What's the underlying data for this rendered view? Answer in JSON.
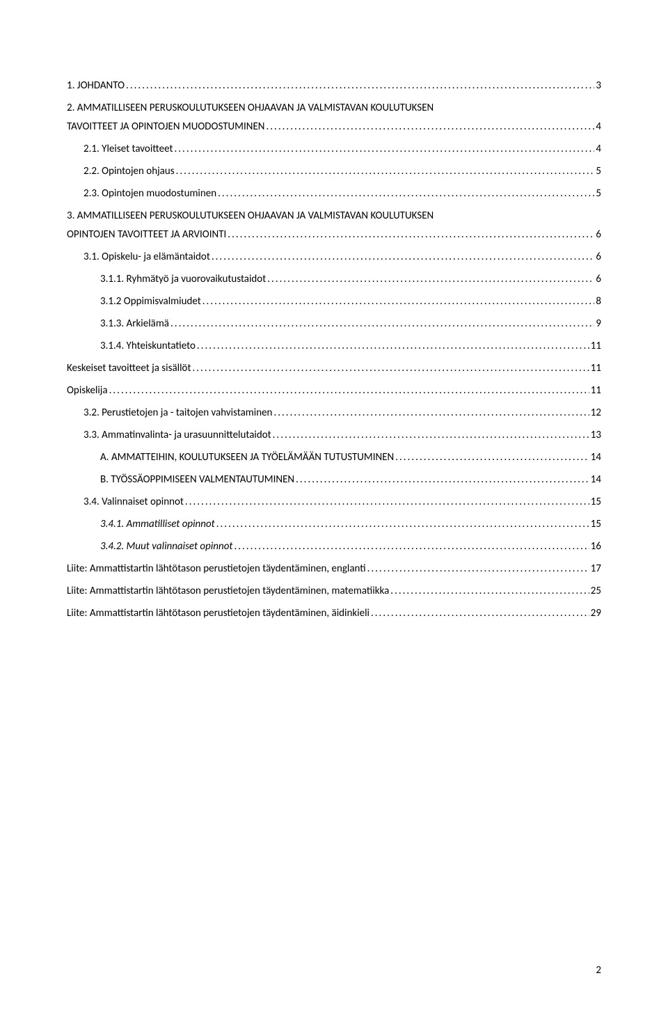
{
  "toc": [
    {
      "level": 0,
      "text": "1. JOHDANTO",
      "page": "3"
    },
    {
      "level": 0,
      "text": "2. AMMATILLISEEN PERUSKOULUTUKSEEN OHJAAVAN JA VALMISTAVAN KOULUTUKSEN",
      "cont": "TAVOITTEET JA OPINTOJEN MUODOSTUMINEN",
      "page": "4"
    },
    {
      "level": 1,
      "text": "2.1. Yleiset tavoitteet",
      "page": "4"
    },
    {
      "level": 1,
      "text": "2.2. Opintojen ohjaus",
      "page": "5"
    },
    {
      "level": 1,
      "text": "2.3. Opintojen muodostuminen",
      "page": "5"
    },
    {
      "level": 0,
      "text": "3. AMMATILLISEEN PERUSKOULUTUKSEEN OHJAAVAN JA VALMISTAVAN KOULUTUKSEN",
      "cont": "OPINTOJEN TAVOITTEET JA ARVIOINTI",
      "page": "6"
    },
    {
      "level": 1,
      "text": "3.1. Opiskelu- ja elämäntaidot",
      "page": "6"
    },
    {
      "level": 2,
      "text": "3.1.1. Ryhmätyö ja vuorovaikutustaidot",
      "page": "6"
    },
    {
      "level": 2,
      "text": "3.1.2 Oppimisvalmiudet",
      "page": "8"
    },
    {
      "level": 2,
      "text": "3.1.3. Arkielämä",
      "page": "9"
    },
    {
      "level": 2,
      "text": "3.1.4. Yhteiskuntatieto",
      "page": "11"
    },
    {
      "level": 0,
      "text": "Keskeiset tavoitteet ja sisällöt",
      "page": "11"
    },
    {
      "level": 0,
      "text": "Opiskelija",
      "page": "11"
    },
    {
      "level": 1,
      "text": "3.2. Perustietojen ja - taitojen vahvistaminen",
      "page": "12"
    },
    {
      "level": 1,
      "text": "3.3. Ammatinvalinta- ja urasuunnittelutaidot",
      "page": "13"
    },
    {
      "level": 2,
      "text": "A. AMMATTEIHIN, KOULUTUKSEEN JA TYÖELÄMÄÄN TUTUSTUMINEN",
      "page": "14"
    },
    {
      "level": 2,
      "text": "B. TYÖSSÄOPPIMISEEN VALMENTAUTUMINEN",
      "page": "14"
    },
    {
      "level": 1,
      "text": "3.4. Valinnaiset opinnot",
      "page": "15"
    },
    {
      "level": 2,
      "italic": true,
      "text": "3.4.1. Ammatilliset opinnot",
      "page": "15"
    },
    {
      "level": 2,
      "italic": true,
      "text": "3.4.2. Muut valinnaiset opinnot",
      "page": "16"
    },
    {
      "level": 0,
      "text": "Liite: Ammattistartin lähtötason perustietojen täydentäminen, englanti",
      "page": "17"
    },
    {
      "level": 0,
      "text": "Liite: Ammattistartin lähtötason perustietojen täydentäminen, matematiikka",
      "page": "25"
    },
    {
      "level": 0,
      "text": "Liite: Ammattistartin lähtötason perustietojen täydentäminen, äidinkieli",
      "page": "29"
    }
  ],
  "pageNumber": "2"
}
